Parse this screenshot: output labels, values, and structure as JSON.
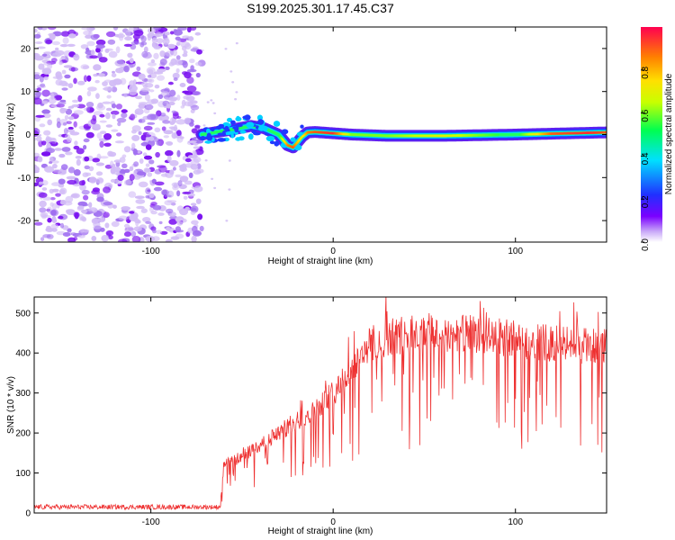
{
  "title": "S199.2025.301.17.45.C37",
  "chart_data": [
    {
      "type": "heatmap",
      "xlabel": "Height of straight line (km)",
      "ylabel": "Frequency (Hz)",
      "xlim": [
        -164,
        150
      ],
      "ylim": [
        -25,
        25
      ],
      "xticks": [
        "-100",
        "0",
        "100"
      ],
      "xtick_values": [
        -100,
        0,
        100
      ],
      "yticks": [
        "-20",
        "-10",
        "0",
        "10",
        "20"
      ],
      "ytick_values": [
        -20,
        -10,
        0,
        10,
        20
      ],
      "noise_region": [
        -164,
        -72
      ],
      "signal_start": -72,
      "ridge": {
        "x": [
          -72,
          -65,
          -55,
          -45,
          -38,
          -30,
          -25,
          -22,
          -20,
          -17,
          -14,
          -10,
          0,
          10,
          30,
          60,
          100,
          120,
          140,
          150
        ],
        "y": [
          0,
          0.5,
          1.2,
          2.0,
          1.5,
          0.0,
          -2.5,
          -3.0,
          -2.0,
          -0.5,
          0.5,
          0.6,
          0.3,
          0.0,
          -0.3,
          -0.3,
          0.0,
          0.2,
          0.4,
          0.5
        ],
        "amplitude": [
          0.2,
          0.25,
          0.3,
          0.35,
          0.4,
          0.5,
          0.85,
          0.9,
          0.8,
          0.7,
          0.85,
          0.9,
          0.95,
          0.6,
          0.6,
          0.7,
          0.5,
          0.9,
          0.95,
          0.9
        ]
      },
      "colorbar": {
        "label": "Normalized spectral amplitude",
        "range": [
          0.0,
          1.0
        ],
        "ticks": [
          "0.0",
          "0.2",
          "0.4",
          "0.6",
          "0.8"
        ],
        "tick_values": [
          0.0,
          0.2,
          0.4,
          0.6,
          0.8
        ]
      }
    },
    {
      "type": "line",
      "xlabel": "Height of straight line (km)",
      "ylabel": "SNR (10 * v/v)",
      "xlim": [
        -164,
        150
      ],
      "ylim": [
        0,
        540
      ],
      "xticks": [
        "-100",
        "0",
        "100"
      ],
      "xtick_values": [
        -100,
        0,
        100
      ],
      "yticks": [
        "0",
        "100",
        "200",
        "300",
        "400",
        "500"
      ],
      "ytick_values": [
        0,
        100,
        200,
        300,
        400,
        500
      ],
      "color": "#ee3030",
      "envelope": {
        "x": [
          -164,
          -62,
          -60,
          -50,
          -40,
          -30,
          -20,
          -10,
          0,
          10,
          20,
          30,
          50,
          70,
          90,
          110,
          130,
          150
        ],
        "y": [
          15,
          15,
          120,
          140,
          170,
          200,
          230,
          260,
          300,
          360,
          420,
          440,
          450,
          450,
          440,
          430,
          420,
          415
        ]
      }
    }
  ]
}
